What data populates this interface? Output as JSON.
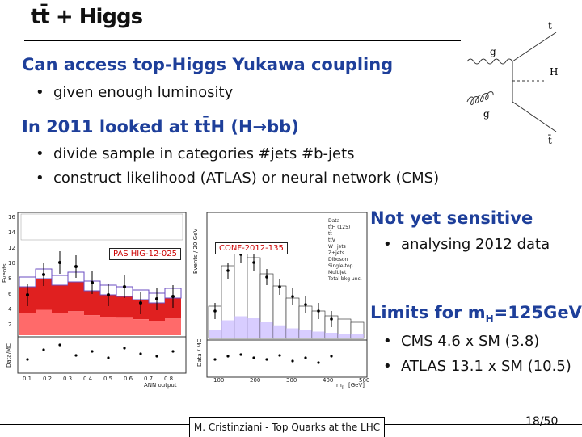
{
  "slide": {
    "title": "tt̄ + Higgs",
    "sections": [
      {
        "heading": "Can access top-Higgs Yukawa coupling",
        "bullets": [
          "given enough luminosity"
        ]
      },
      {
        "heading": "In 2011 looked at tt̄H (H→bb)",
        "bullets": [
          "divide sample in categories #jets #b-jets",
          "construct likelihood (ATLAS) or neural network (CMS)"
        ]
      }
    ],
    "right_notes": {
      "sensitivity_heading": "Not yet sensitive",
      "sensitivity_bullets": [
        "analysing 2012 data"
      ],
      "limits_heading_prefix": "Limits for m",
      "limits_heading_sub": "H",
      "limits_heading_suffix": "=125GeV",
      "limits_bullets": [
        "CMS 4.6 x SM (3.8)",
        "ATLAS 13.1 x SM (10.5)"
      ]
    },
    "footer": {
      "text": "M. Cristinziani - Top Quarks at the LHC",
      "page": "18/50"
    }
  },
  "feynman": {
    "labels": {
      "g_top": "g",
      "g_bottom": "g",
      "t_top": "t",
      "h": "H",
      "t_bottom": "t̄"
    }
  },
  "plots": {
    "cms": {
      "tag": "PAS HIG-12-025",
      "ylabel": "Events",
      "ratio_label": "Data/MC",
      "xlabel": "ANN output",
      "xticks": [
        "0.1",
        "0.2",
        "0.3",
        "0.4",
        "0.5",
        "0.6",
        "0.7",
        "0.8"
      ],
      "yticks": [
        "16",
        "14",
        "12",
        "10",
        "8",
        "6",
        "4",
        "2"
      ]
    },
    "atlas": {
      "tag": "CONF-2012-135",
      "ylabel": "Events / 20 GeV",
      "ratio_label": "Data / MC",
      "xlabel": "m",
      "xlabel_sub": "jj̄",
      "xlabel_unit": "[GeV]",
      "xticks": [
        "100",
        "200",
        "300",
        "400",
        "500"
      ],
      "legend": [
        "Data",
        "tt̄H (125)",
        "tt̄",
        "tt̄V",
        "W+jets",
        "Z+jets",
        "Diboson",
        "Single-top",
        "Multijet",
        "Total bkg unc."
      ]
    }
  },
  "colors": {
    "heading_blue": "#1e3f9a",
    "ttbar_red": "#e02020",
    "ttbar_white": "#ffffff",
    "signal_purple": "#6a4bc0"
  }
}
